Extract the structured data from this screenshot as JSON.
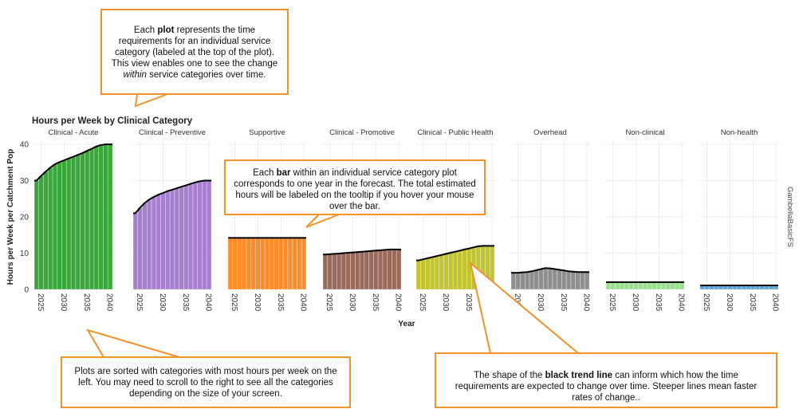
{
  "chart_data": {
    "type": "bar",
    "title": "Hours per Week by Clinical Category",
    "xlabel": "Year",
    "ylabel": "Hours per Week per Catchment Pop",
    "ylim": [
      0,
      40
    ],
    "yticks": [
      0,
      10,
      20,
      30,
      40
    ],
    "xticks": [
      "2025",
      "2030",
      "2035",
      "2040"
    ],
    "years": [
      2024,
      2025,
      2026,
      2027,
      2028,
      2029,
      2030,
      2031,
      2032,
      2033,
      2034,
      2035,
      2036,
      2037,
      2038,
      2039,
      2040
    ],
    "facet_strip_right": "GambellaBasicFS",
    "grid": true,
    "trend_line_color": "#000000",
    "panels": [
      {
        "name": "Clinical - Acute",
        "color": "#3aa73a",
        "values": [
          30.0,
          31.3,
          32.5,
          33.6,
          34.5,
          35.1,
          35.6,
          36.1,
          36.6,
          37.1,
          37.6,
          38.2,
          38.8,
          39.4,
          39.8,
          40.0,
          40.0
        ]
      },
      {
        "name": "Clinical - Preventive",
        "color": "#a77fcf",
        "values": [
          21.0,
          22.5,
          23.8,
          24.8,
          25.5,
          26.1,
          26.6,
          27.1,
          27.5,
          27.9,
          28.3,
          28.7,
          29.1,
          29.5,
          29.8,
          30.0,
          30.0
        ]
      },
      {
        "name": "Supportive",
        "color": "#ff8c28",
        "values": [
          14.2,
          14.2,
          14.2,
          14.2,
          14.2,
          14.2,
          14.2,
          14.2,
          14.2,
          14.2,
          14.2,
          14.2,
          14.2,
          14.2,
          14.2,
          14.2,
          14.2
        ]
      },
      {
        "name": "Clinical - Promotive",
        "color": "#9a6a5c",
        "values": [
          9.6,
          9.7,
          9.8,
          9.9,
          10.0,
          10.1,
          10.2,
          10.3,
          10.4,
          10.5,
          10.6,
          10.7,
          10.8,
          10.9,
          11.0,
          11.0,
          11.0
        ]
      },
      {
        "name": "Clinical - Public Health",
        "color": "#c2c432",
        "values": [
          8.0,
          8.3,
          8.6,
          8.9,
          9.2,
          9.5,
          9.8,
          10.1,
          10.4,
          10.7,
          11.0,
          11.3,
          11.6,
          11.9,
          12.0,
          12.0,
          12.0
        ]
      },
      {
        "name": "Overhead",
        "color": "#8f8f8f",
        "values": [
          4.6,
          4.6,
          4.7,
          4.8,
          5.0,
          5.3,
          5.6,
          5.9,
          5.8,
          5.6,
          5.4,
          5.2,
          5.0,
          4.9,
          4.8,
          4.8,
          4.8
        ]
      },
      {
        "name": "Non-clinical",
        "color": "#9be08f",
        "values": [
          2.0,
          2.0,
          2.0,
          2.0,
          2.0,
          2.0,
          2.0,
          2.0,
          2.0,
          2.0,
          2.0,
          2.0,
          2.0,
          2.0,
          2.0,
          2.0,
          2.0
        ]
      },
      {
        "name": "Non-health",
        "color": "#5aa4d8",
        "values": [
          1.1,
          1.1,
          1.1,
          1.1,
          1.1,
          1.1,
          1.1,
          1.1,
          1.1,
          1.1,
          1.1,
          1.1,
          1.1,
          1.1,
          1.1,
          1.1,
          1.1
        ]
      }
    ]
  },
  "callouts": {
    "plot": {
      "p1": "Each ",
      "b1": "plot",
      "p2": " represents the time requirements for an individual service category (labeled at the top of the plot). This view enables one to see the change ",
      "i1": "within",
      "p3": " service categories over time."
    },
    "bar": {
      "p1": "Each ",
      "b1": "bar",
      "p2": " within an individual service category plot corresponds to one year in the forecast. The total estimated hours will be labeled on the tooltip if you hover your mouse over the bar."
    },
    "sort": {
      "p1": "Plots are sorted with categories with most hours per week on the left. You may need to scroll to the right to see all the categories depending on the size of your screen."
    },
    "trend": {
      "p1": "The shape of the ",
      "b1": "black trend line",
      "p2": " can inform which how the time requirements are expected to change over time. Steeper lines mean faster rates of change.."
    }
  },
  "colors": {
    "callout_border": "#f0932b",
    "grid": "#e8e8e8"
  }
}
